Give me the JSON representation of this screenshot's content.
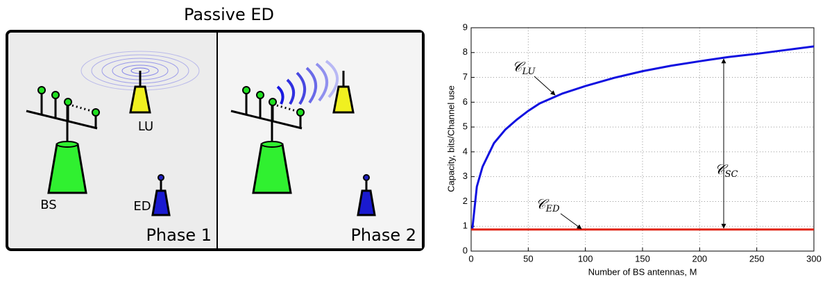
{
  "diagram": {
    "title": "Passive ED",
    "phase1": {
      "bs": "BS",
      "lu": "LU",
      "ed": "ED",
      "label": "Phase 1"
    },
    "phase2": {
      "label": "Phase 2"
    }
  },
  "chart_data": {
    "type": "line",
    "xlabel": "Number of BS antennas, M",
    "ylabel": "Capacity, bits/Channel use",
    "xlim": [
      0,
      300
    ],
    "ylim": [
      0,
      9
    ],
    "xticks": [
      0,
      50,
      100,
      150,
      200,
      250,
      300
    ],
    "yticks": [
      0,
      1,
      2,
      3,
      4,
      5,
      6,
      7,
      8,
      9
    ],
    "grid": true,
    "series": [
      {
        "color": "#1010e0",
        "x": [
          1,
          5,
          10,
          20,
          30,
          40,
          50,
          60,
          80,
          100,
          125,
          150,
          175,
          200,
          225,
          250,
          275,
          300
        ],
        "values": [
          0.87,
          2.6,
          3.4,
          4.35,
          4.9,
          5.3,
          5.65,
          5.95,
          6.35,
          6.65,
          6.98,
          7.25,
          7.47,
          7.65,
          7.82,
          7.95,
          8.1,
          8.25
        ]
      },
      {
        "color": "#e02010",
        "x": [
          0,
          300
        ],
        "values": [
          0.87,
          0.87
        ]
      }
    ],
    "annotations": [
      {
        "symbol": "𝒞",
        "sub": "LU"
      },
      {
        "symbol": "𝒞",
        "sub": "ED"
      },
      {
        "symbol": "𝒞",
        "sub": "SC"
      }
    ]
  }
}
